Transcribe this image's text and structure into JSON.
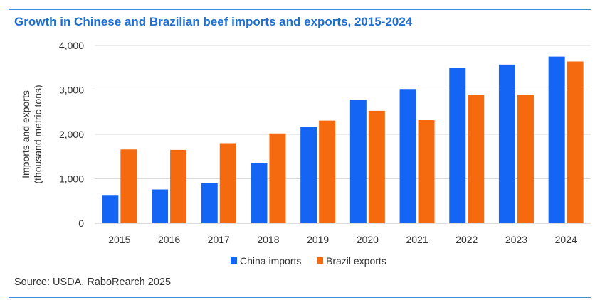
{
  "colors": {
    "accent_rule": "#3f8fd8",
    "title": "#1f6fd0"
  },
  "title": "Growth in Chinese and Brazilian beef imports and exports, 2015-2024",
  "source": "Source: USDA, RaboRearch 2025",
  "chart_data": {
    "type": "bar",
    "categories": [
      "2015",
      "2016",
      "2017",
      "2018",
      "2019",
      "2020",
      "2021",
      "2022",
      "2023",
      "2024"
    ],
    "series": [
      {
        "name": "China imports",
        "color": "#1565f5",
        "values": [
          620,
          760,
          900,
          1360,
          2170,
          2780,
          3020,
          3490,
          3570,
          3750
        ]
      },
      {
        "name": "Brazil exports",
        "color": "#f56a0f",
        "values": [
          1660,
          1650,
          1800,
          2020,
          2310,
          2530,
          2320,
          2890,
          2890,
          3640
        ]
      }
    ],
    "ylabel_lines": [
      "Imports and exports",
      "(thousand metric tons)"
    ],
    "ylim": [
      0,
      4000
    ],
    "yticks": [
      0,
      1000,
      2000,
      3000,
      4000
    ],
    "ytick_labels": [
      "0",
      "1,000",
      "2,000",
      "3,000",
      "4,000"
    ],
    "grid": true,
    "legend_position": "bottom-center"
  }
}
